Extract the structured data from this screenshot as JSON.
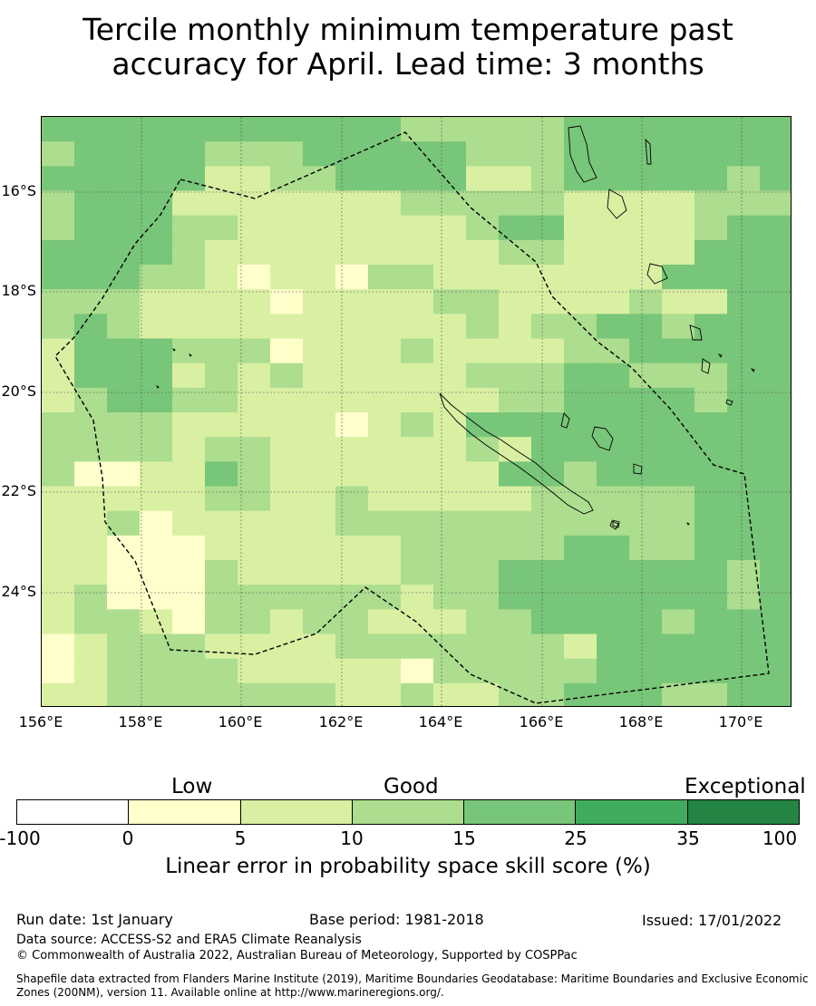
{
  "title_line1": "Tercile monthly minimum temperature past",
  "title_line2": "accuracy for April. Lead time: 3 months",
  "lat_labels": [
    "16°S",
    "18°S",
    "20°S",
    "22°S",
    "24°S"
  ],
  "lon_labels": [
    "156°E",
    "158°E",
    "160°E",
    "162°E",
    "164°E",
    "166°E",
    "168°E",
    "170°E"
  ],
  "colorbar": {
    "categories": {
      "low": "Low",
      "good": "Good",
      "exceptional": "Exceptional"
    },
    "ticks": [
      "-100",
      "0",
      "5",
      "10",
      "15",
      "25",
      "35",
      "100"
    ],
    "colors": [
      "#ffffff",
      "#ffffcc",
      "#d9f0a3",
      "#addd8e",
      "#78c679",
      "#41ab5d",
      "#238443"
    ],
    "title": "Linear error in probability space skill score (%)"
  },
  "footer": {
    "run_date": "Run date: 1st January",
    "base_period": "Base period: 1981-2018",
    "issued": "Issued: 17/01/2022",
    "data_source": "Data source: ACCESS-S2 and ERA5 Climate Reanalysis",
    "copyright": "© Commonwealth of Australia 2022, Australian Bureau of Meteorology, Supported by COSPPac",
    "shapefile_line1": "Shapefile data extracted from Flanders Marine Institute (2019), Maritime Boundaries Geodatabase: Maritime Boundaries and Exclusive Economic",
    "shapefile_line2": "Zones (200NM), version 11. Available online at http://www.marineregions.org/."
  },
  "map_grid": [
    "44444444444333334444444",
    "34444333444443334444444",
    "44444223344442234444434",
    "34442222222333332222333",
    "34443322222223442222344",
    "44443222222222332222444",
    "44433212213322222224444",
    "33322221222233222232244",
    "34322222222223233443444",
    "24443331222322223344444",
    "24442323222223334433344",
    "23443322222222334444344",
    "33332222212324444444444",
    "33332332222223244444444",
    "31122432222222443444444",
    "22222332232222233333444",
    "22312222233333333333444",
    "22111222222333334433444",
    "22111322222333444444434",
    "23111333333233444444434",
    "23321332332223344443444",
    "12333222233333332444444",
    "12333322222133333444444",
    "22333333322322334443344"
  ]
}
